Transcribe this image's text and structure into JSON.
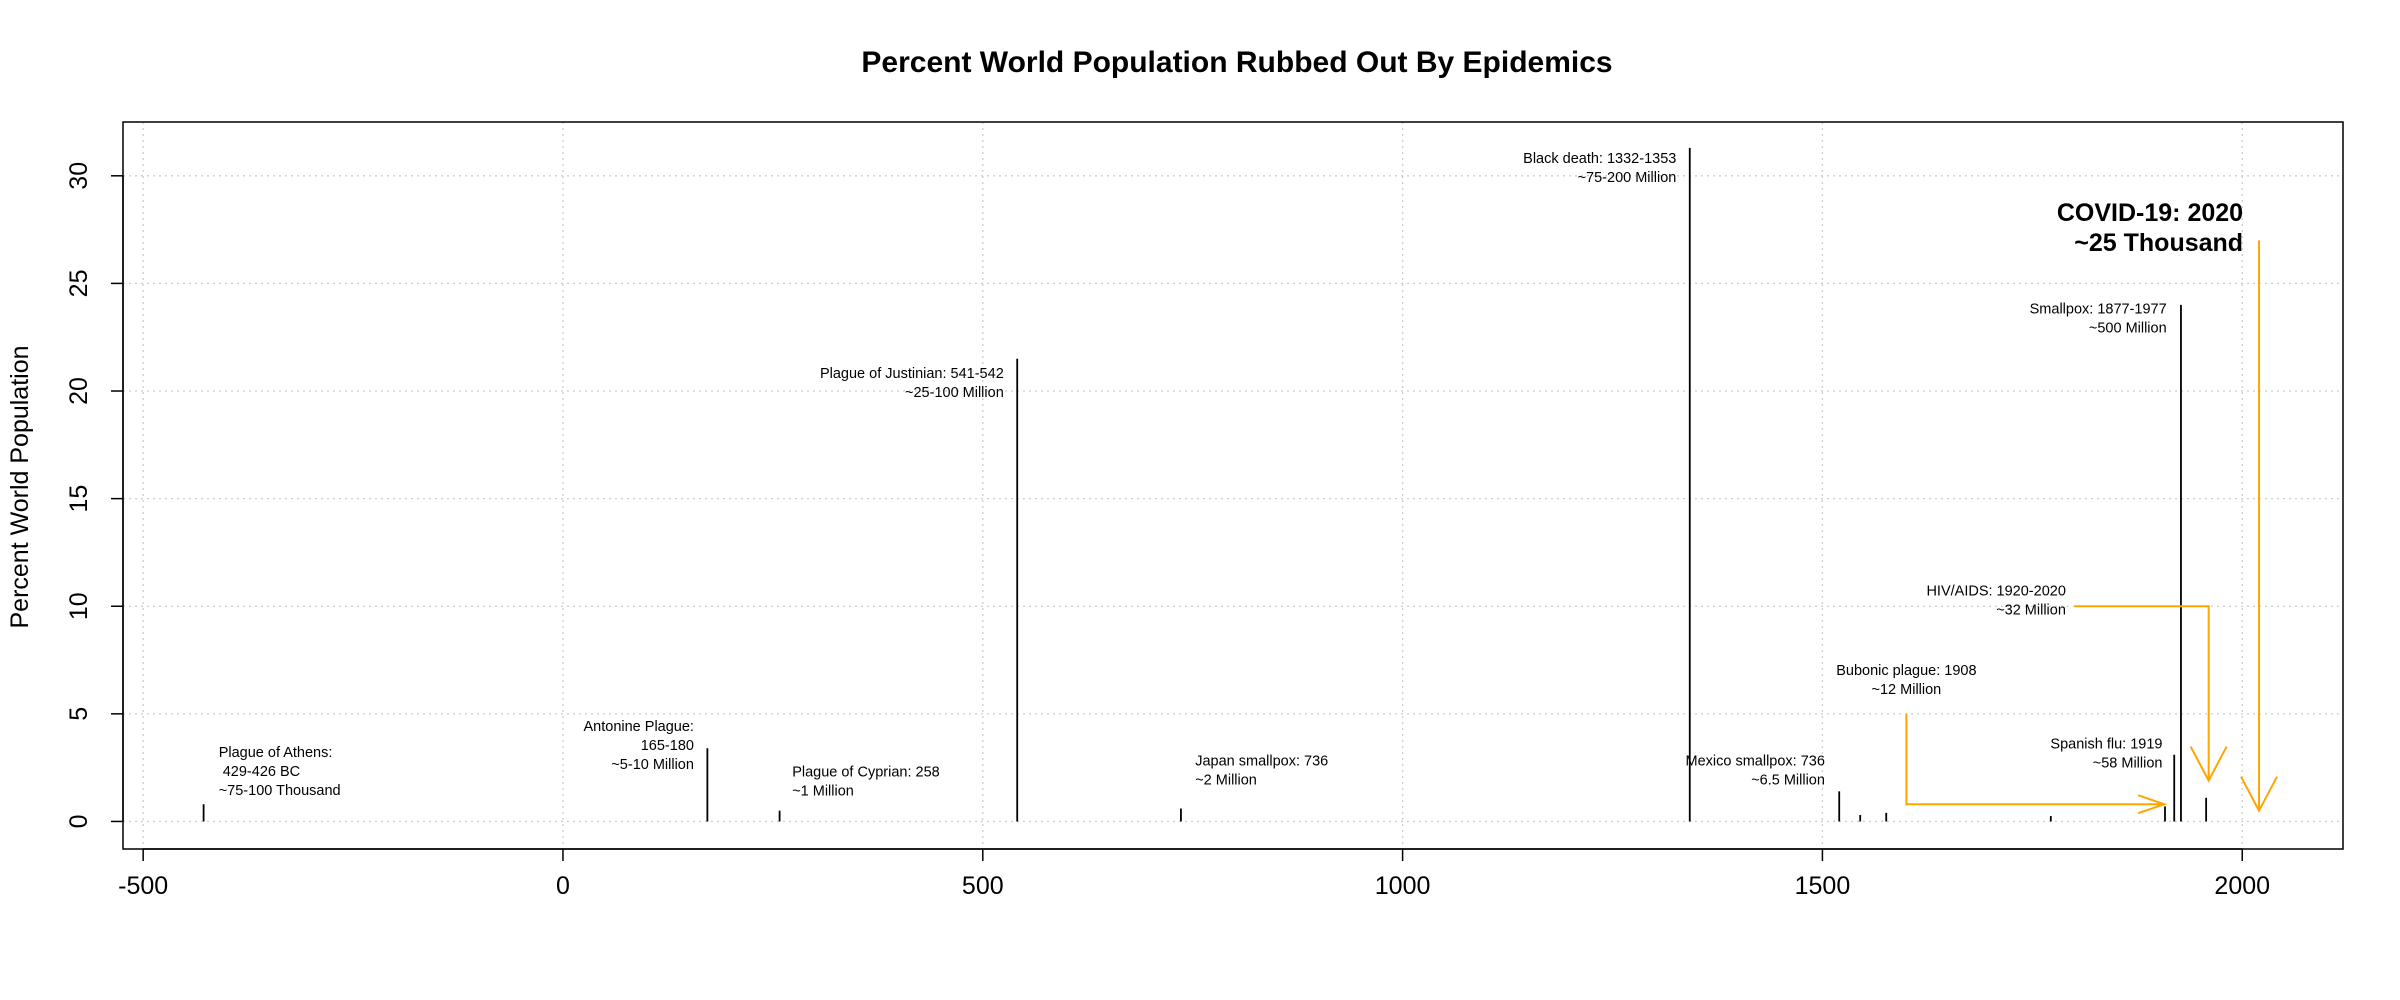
{
  "chart_data": {
    "type": "bar",
    "title": "Percent World Population Rubbed Out By Epidemics",
    "xlabel": "",
    "ylabel": "Percent World Population",
    "xlim": [
      -524,
      2120
    ],
    "ylim": [
      -1.28,
      32.5
    ],
    "xticks": [
      -500,
      0,
      500,
      1000,
      1500,
      2000
    ],
    "yticks": [
      0,
      5,
      10,
      15,
      20,
      25,
      30
    ],
    "grid": true,
    "bar_color": "#000000",
    "arrow_color": "#FFA500",
    "epidemics": [
      {
        "x": -428,
        "y": 0.8
      },
      {
        "x": 172,
        "y": 3.4
      },
      {
        "x": 258,
        "y": 0.5
      },
      {
        "x": 541,
        "y": 21.5
      },
      {
        "x": 736,
        "y": 0.6
      },
      {
        "x": 1342,
        "y": 31.3
      },
      {
        "x": 1520,
        "y": 1.4
      },
      {
        "x": 1545,
        "y": 0.3
      },
      {
        "x": 1576,
        "y": 0.4
      },
      {
        "x": 1772,
        "y": 0.25
      },
      {
        "x": 1908,
        "y": 0.7
      },
      {
        "x": 1919,
        "y": 3.1
      },
      {
        "x": 1927,
        "y": 24.0
      },
      {
        "x": 1957,
        "y": 1.1
      }
    ],
    "annotations": [
      {
        "lines": [
          "Plague of Athens:",
          " 429-426 BC",
          "~75-100 Thousand"
        ],
        "x": -410,
        "y": 3.0,
        "align": "start",
        "size": "small"
      },
      {
        "lines": [
          "Antonine Plague:",
          "165-180",
          "~5-10 Million"
        ],
        "x": 156,
        "y": 4.2,
        "align": "end",
        "size": "small"
      },
      {
        "lines": [
          "Plague of Cyprian: 258",
          "~1 Million"
        ],
        "x": 273,
        "y": 2.1,
        "align": "start",
        "size": "small"
      },
      {
        "lines": [
          "Plague of Justinian: 541-542",
          "~25-100 Million"
        ],
        "x": 525,
        "y": 20.6,
        "align": "end",
        "size": "small"
      },
      {
        "lines": [
          "Japan smallpox: 736",
          "~2 Million"
        ],
        "x": 753,
        "y": 2.6,
        "align": "start",
        "size": "small"
      },
      {
        "lines": [
          "Black death: 1332-1353",
          "~75-200 Million"
        ],
        "x": 1326,
        "y": 30.6,
        "align": "end",
        "size": "small"
      },
      {
        "lines": [
          "Mexico smallpox: 736",
          "~6.5 Million"
        ],
        "x": 1503,
        "y": 2.6,
        "align": "end",
        "size": "small"
      },
      {
        "lines": [
          "Smallpox: 1877-1977",
          "~500 Million"
        ],
        "x": 1910,
        "y": 23.6,
        "align": "end",
        "size": "small"
      },
      {
        "lines": [
          "HIV/AIDS: 1920-2020",
          "~32 Million"
        ],
        "x": 1790,
        "y": 10.5,
        "align": "end",
        "size": "small"
      },
      {
        "lines": [
          "Bubonic plague: 1908",
          "~12 Million"
        ],
        "x": 1600,
        "y": 6.8,
        "align": "middle",
        "size": "small"
      },
      {
        "lines": [
          "Spanish flu: 1919",
          "~58 Million"
        ],
        "x": 1905,
        "y": 3.4,
        "align": "end",
        "size": "small"
      },
      {
        "lines": [
          "COVID-19: 2020",
          "~25 Thousand"
        ],
        "x": 2001,
        "y": 27.9,
        "align": "end",
        "size": "big"
      }
    ],
    "arrows": [
      {
        "path": [
          [
            1600,
            5.0
          ],
          [
            1600,
            0.8
          ],
          [
            1907,
            0.8
          ]
        ],
        "head": [
          1907,
          0.8
        ],
        "dir": "right"
      },
      {
        "path": [
          [
            1800,
            10.0
          ],
          [
            1960,
            10.0
          ],
          [
            1960,
            1.9
          ]
        ],
        "head": [
          1960,
          1.9
        ],
        "dir": "down"
      },
      {
        "path": [
          [
            2020,
            27.0
          ],
          [
            2020,
            0.5
          ]
        ],
        "head": [
          2020,
          0.5
        ],
        "dir": "down"
      }
    ]
  }
}
